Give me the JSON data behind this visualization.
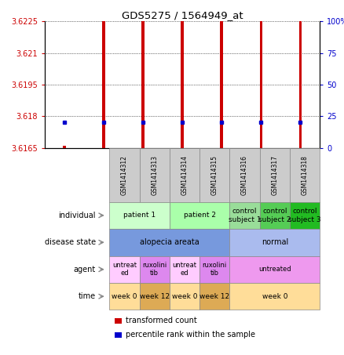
{
  "title": "GDS5275 / 1564949_at",
  "samples": [
    "GSM1414312",
    "GSM1414313",
    "GSM1414314",
    "GSM1414315",
    "GSM1414316",
    "GSM1414317",
    "GSM1414318"
  ],
  "transformed_counts": [
    3.6166,
    3.6225,
    3.6225,
    3.6225,
    3.6225,
    3.6225,
    3.6225
  ],
  "percentile_ranks_pct": [
    20,
    20,
    20,
    20,
    20,
    20,
    20
  ],
  "ylim_left": [
    3.6165,
    3.6225
  ],
  "ylim_right": [
    0,
    100
  ],
  "yticks_left": [
    3.6165,
    3.618,
    3.6195,
    3.621,
    3.6225
  ],
  "ytick_labels_left": [
    "3.6165",
    "3.618",
    "3.6195",
    "3.621",
    "3.6225"
  ],
  "yticks_right": [
    0,
    25,
    50,
    75,
    100
  ],
  "ytick_labels_right": [
    "0",
    "25",
    "50",
    "75",
    "100%"
  ],
  "left_color": "#cc0000",
  "right_color": "#0000cc",
  "bar_color": "#cc0000",
  "dot_color": "#0000cc",
  "bar_width": 0.07,
  "individual_data": [
    [
      0,
      2,
      "patient 1",
      "#ccffcc"
    ],
    [
      2,
      4,
      "patient 2",
      "#aaffaa"
    ],
    [
      4,
      5,
      "control\nsubject 1",
      "#99dd99"
    ],
    [
      5,
      6,
      "control\nsubject 2",
      "#55cc55"
    ],
    [
      6,
      7,
      "control\nsubject 3",
      "#22bb22"
    ]
  ],
  "disease_data": [
    [
      0,
      4,
      "alopecia areata",
      "#7799dd"
    ],
    [
      4,
      7,
      "normal",
      "#aabbee"
    ]
  ],
  "agent_data": [
    [
      0,
      1,
      "untreat\ned",
      "#ffccff"
    ],
    [
      1,
      2,
      "ruxolini\ntib",
      "#dd88ee"
    ],
    [
      2,
      3,
      "untreat\ned",
      "#ffccff"
    ],
    [
      3,
      4,
      "ruxolini\ntib",
      "#dd88ee"
    ],
    [
      4,
      7,
      "untreated",
      "#ee99ee"
    ]
  ],
  "time_data": [
    [
      0,
      1,
      "week 0",
      "#ffdd99"
    ],
    [
      1,
      2,
      "week 12",
      "#ddaa55"
    ],
    [
      2,
      3,
      "week 0",
      "#ffdd99"
    ],
    [
      3,
      4,
      "week 12",
      "#ddaa55"
    ],
    [
      4,
      7,
      "week 0",
      "#ffdd99"
    ]
  ],
  "row_labels": [
    "individual",
    "disease state",
    "agent",
    "time"
  ],
  "legend_red": "transformed count",
  "legend_blue": "percentile rank within the sample",
  "bg": "#ffffff"
}
